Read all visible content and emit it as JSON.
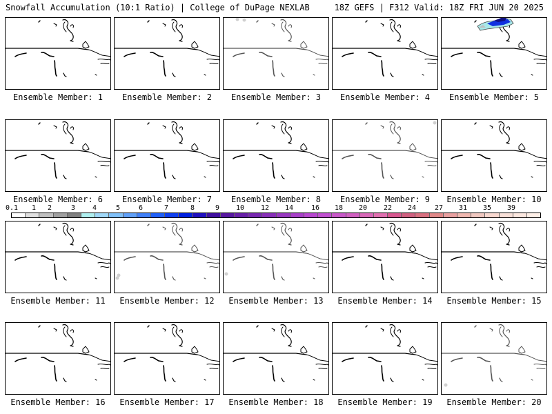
{
  "header": {
    "left": "Snowfall Accumulation (10:1 Ratio) | College of DuPage NEXLAB",
    "right": "18Z GEFS | F312 Valid: 18Z FRI JUN 20 2025"
  },
  "label_prefix": "Ensemble Member: ",
  "members": [
    {
      "id": 1,
      "label": "Ensemble Member: 1",
      "snow": "none"
    },
    {
      "id": 2,
      "label": "Ensemble Member: 2",
      "snow": "none"
    },
    {
      "id": 3,
      "label": "Ensemble Member: 3",
      "snow": "trace"
    },
    {
      "id": 4,
      "label": "Ensemble Member: 4",
      "snow": "none"
    },
    {
      "id": 5,
      "label": "Ensemble Member: 5",
      "snow": "heavy"
    },
    {
      "id": 6,
      "label": "Ensemble Member: 6",
      "snow": "none"
    },
    {
      "id": 7,
      "label": "Ensemble Member: 7",
      "snow": "none"
    },
    {
      "id": 8,
      "label": "Ensemble Member: 8",
      "snow": "none"
    },
    {
      "id": 9,
      "label": "Ensemble Member: 9",
      "snow": "trace"
    },
    {
      "id": 10,
      "label": "Ensemble Member: 10",
      "snow": "none"
    },
    {
      "id": 11,
      "label": "Ensemble Member: 11",
      "snow": "none"
    },
    {
      "id": 12,
      "label": "Ensemble Member: 12",
      "snow": "trace"
    },
    {
      "id": 13,
      "label": "Ensemble Member: 13",
      "snow": "trace"
    },
    {
      "id": 14,
      "label": "Ensemble Member: 14",
      "snow": "none"
    },
    {
      "id": 15,
      "label": "Ensemble Member: 15",
      "snow": "none"
    },
    {
      "id": 16,
      "label": "Ensemble Member: 16",
      "snow": "none"
    },
    {
      "id": 17,
      "label": "Ensemble Member: 17",
      "snow": "none"
    },
    {
      "id": 18,
      "label": "Ensemble Member: 18",
      "snow": "none"
    },
    {
      "id": 19,
      "label": "Ensemble Member: 19",
      "snow": "none"
    },
    {
      "id": 20,
      "label": "Ensemble Member: 20",
      "snow": "trace"
    }
  ],
  "scale": {
    "labels": [
      "0.1",
      "1",
      "2",
      "3",
      "4",
      "5",
      "6",
      "7",
      "8",
      "9",
      "10",
      "12",
      "14",
      "16",
      "18",
      "20",
      "22",
      "24",
      "27",
      "31",
      "35",
      "39"
    ],
    "colors": [
      "#ffffff",
      "#e0e0e0",
      "#c0c0c0",
      "#a0a0a0",
      "#808080",
      "#b0f0f0",
      "#a0d8f8",
      "#80c0f8",
      "#60a0f8",
      "#4080f8",
      "#2060f8",
      "#1040f0",
      "#0020e0",
      "#2010c0",
      "#4010a0",
      "#5818a0",
      "#6820a8",
      "#7828b0",
      "#8830b8",
      "#9838c0",
      "#a840c8",
      "#b848d0",
      "#c050d0",
      "#c858c8",
      "#d060c0",
      "#d868b8",
      "#e070b0",
      "#d85890",
      "#d06080",
      "#d87080",
      "#e08888",
      "#e8a0a0",
      "#f0b8b0",
      "#f0c8c0",
      "#f8d8d0",
      "#f8e0d8",
      "#fce8e0",
      "#fff0e8"
    ]
  }
}
